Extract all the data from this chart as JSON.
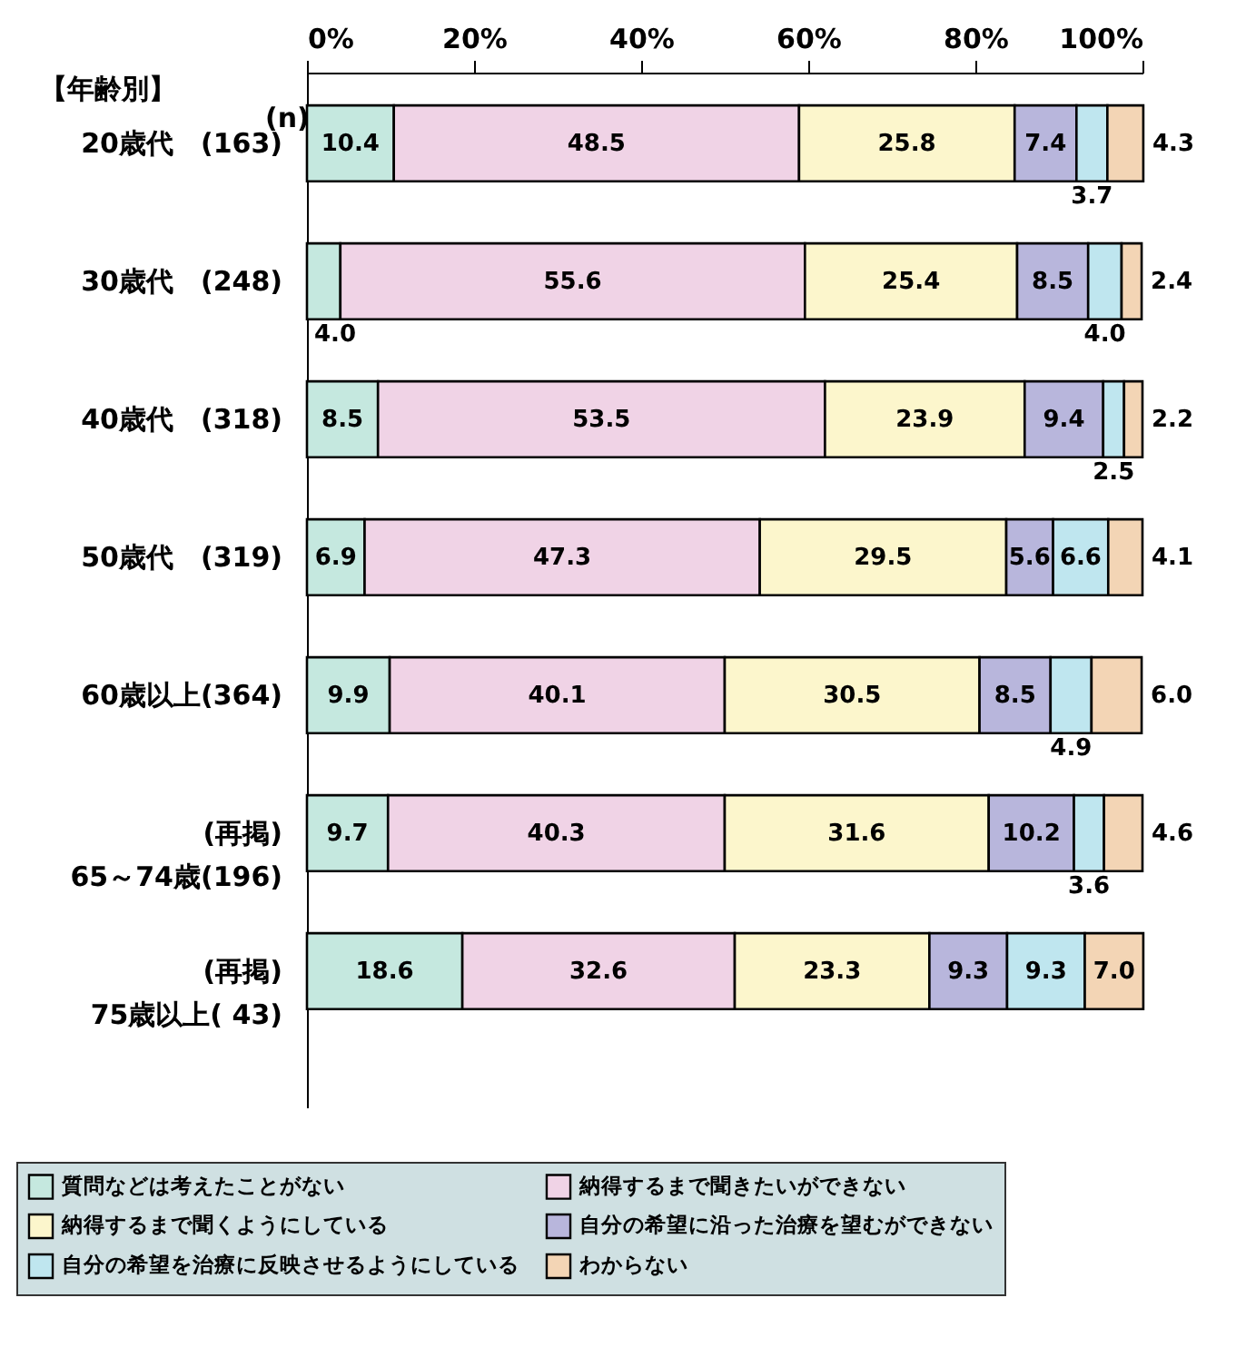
{
  "chart_data": {
    "type": "bar",
    "orientation": "horizontal",
    "stacked": true,
    "legend": "bottom",
    "grid": false,
    "categories": [
      "20歳代　(163)",
      "30歳代　(248)",
      "40歳代　(318)",
      "50歳代　(319)",
      "60歳以上(364)",
      "(再掲)\n65～74歳(196)",
      "(再掲)\n75歳以上( 43)"
    ],
    "series": [
      {
        "name": "質問などは考えたことがない",
        "color": "#c5e8df",
        "values": [
          10.4,
          4.0,
          8.5,
          6.9,
          9.9,
          9.7,
          18.6
        ],
        "value_labels": [
          "10.4",
          "4.0",
          "8.5",
          "6.9",
          "9.9",
          "9.7",
          "18.6"
        ]
      },
      {
        "name": "納得するまで聞きたいができない",
        "color": "#f0d3e6",
        "values": [
          48.5,
          55.6,
          53.5,
          47.3,
          40.1,
          40.3,
          32.6
        ],
        "value_labels": [
          "48.5",
          "55.6",
          "53.5",
          "47.3",
          "40.1",
          "40.3",
          "32.6"
        ]
      },
      {
        "name": "納得するまで聞くようにしている",
        "color": "#fcf6cc",
        "values": [
          25.8,
          25.4,
          23.9,
          29.5,
          30.5,
          31.6,
          23.3
        ],
        "value_labels": [
          "25.8",
          "25.4",
          "23.9",
          "29.5",
          "30.5",
          "31.6",
          "23.3"
        ]
      },
      {
        "name": "自分の希望に沿った治療を望むができない",
        "color": "#b8b6dc",
        "values": [
          7.4,
          8.5,
          9.4,
          5.6,
          8.5,
          10.2,
          9.3
        ],
        "value_labels": [
          "7.4",
          "8.5",
          "9.4",
          "5.6",
          "8.5",
          "10.2",
          "9.3"
        ]
      },
      {
        "name": "自分の希望を治療に反映させるようにしている",
        "color": "#bfe6ef",
        "values": [
          3.7,
          4.0,
          2.5,
          6.6,
          4.9,
          3.6,
          9.3
        ],
        "value_labels": [
          "3.7",
          "4.0",
          "2.5",
          "6.6",
          "4.9",
          "3.6",
          "9.3"
        ]
      },
      {
        "name": "わからない",
        "color": "#f3d5b5",
        "values": [
          4.3,
          2.4,
          2.2,
          4.1,
          6.0,
          4.6,
          7.0
        ],
        "value_labels": [
          "4.3",
          "2.4",
          "2.2",
          "4.1",
          "6.0",
          "4.6",
          "7.0"
        ]
      }
    ],
    "xlim": [
      0,
      100
    ],
    "xticks": [
      {
        "value": 0,
        "label": "0%"
      },
      {
        "value": 20,
        "label": "20%"
      },
      {
        "value": 40,
        "label": "40%"
      },
      {
        "value": 60,
        "label": "60%"
      },
      {
        "value": 80,
        "label": "80%"
      },
      {
        "value": 100,
        "label": "100%"
      }
    ],
    "annotations": [
      "【年齢別】",
      "(n)"
    ]
  }
}
